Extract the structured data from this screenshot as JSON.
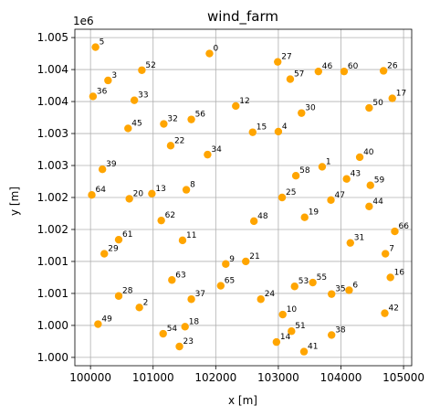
{
  "chart_data": {
    "type": "scatter",
    "title": "wind_farm",
    "xlabel": "x [m]",
    "ylabel": "y [m]",
    "y_offset_label": "1e6",
    "xlim": [
      99750,
      105130
    ],
    "ylim": [
      999870,
      1005130
    ],
    "x_ticks": [
      100000,
      101000,
      102000,
      103000,
      104000,
      105000
    ],
    "x_tick_labels": [
      "100000",
      "101000",
      "102000",
      "103000",
      "104000",
      "105000"
    ],
    "y_ticks": [
      1000000,
      1000500,
      1001000,
      1001500,
      1002000,
      1002500,
      1003000,
      1003500,
      1004000,
      1004500,
      1005000
    ],
    "y_tick_labels": [
      "1.000",
      "1.000",
      "1.001",
      "1.001",
      "1.002",
      "1.002",
      "1.003",
      "1.003",
      "1.004",
      "1.004",
      "1.005"
    ],
    "grid": true,
    "marker_color": "#FFA500",
    "points": [
      {
        "label": "0",
        "x": 101900,
        "y": 1004750
      },
      {
        "label": "1",
        "x": 103700,
        "y": 1002980
      },
      {
        "label": "2",
        "x": 100780,
        "y": 1000780
      },
      {
        "label": "3",
        "x": 100280,
        "y": 1004330
      },
      {
        "label": "4",
        "x": 103000,
        "y": 1003530
      },
      {
        "label": "5",
        "x": 100080,
        "y": 1004850
      },
      {
        "label": "6",
        "x": 104130,
        "y": 1001050
      },
      {
        "label": "7",
        "x": 104710,
        "y": 1001620
      },
      {
        "label": "8",
        "x": 101530,
        "y": 1002620
      },
      {
        "label": "9",
        "x": 102160,
        "y": 1001460
      },
      {
        "label": "10",
        "x": 103070,
        "y": 1000670
      },
      {
        "label": "11",
        "x": 101470,
        "y": 1001830
      },
      {
        "label": "12",
        "x": 102320,
        "y": 1003930
      },
      {
        "label": "13",
        "x": 100980,
        "y": 1002560
      },
      {
        "label": "14",
        "x": 102970,
        "y": 1000240
      },
      {
        "label": "15",
        "x": 102590,
        "y": 1003520
      },
      {
        "label": "16",
        "x": 104790,
        "y": 1001250
      },
      {
        "label": "17",
        "x": 104820,
        "y": 1004050
      },
      {
        "label": "18",
        "x": 101510,
        "y": 1000480
      },
      {
        "label": "19",
        "x": 103420,
        "y": 1002190
      },
      {
        "label": "20",
        "x": 100620,
        "y": 1002480
      },
      {
        "label": "21",
        "x": 102480,
        "y": 1001500
      },
      {
        "label": "22",
        "x": 101280,
        "y": 1003310
      },
      {
        "label": "23",
        "x": 101420,
        "y": 1000170
      },
      {
        "label": "24",
        "x": 102720,
        "y": 1000910
      },
      {
        "label": "25",
        "x": 103060,
        "y": 1002500
      },
      {
        "label": "26",
        "x": 104680,
        "y": 1004480
      },
      {
        "label": "27",
        "x": 102990,
        "y": 1004620
      },
      {
        "label": "28",
        "x": 100450,
        "y": 1000960
      },
      {
        "label": "29",
        "x": 100220,
        "y": 1001620
      },
      {
        "label": "30",
        "x": 103370,
        "y": 1003820
      },
      {
        "label": "31",
        "x": 104150,
        "y": 1001790
      },
      {
        "label": "32",
        "x": 101170,
        "y": 1003650
      },
      {
        "label": "33",
        "x": 100700,
        "y": 1004020
      },
      {
        "label": "34",
        "x": 101870,
        "y": 1003170
      },
      {
        "label": "35",
        "x": 103850,
        "y": 1000990
      },
      {
        "label": "36",
        "x": 100040,
        "y": 1004080
      },
      {
        "label": "37",
        "x": 101610,
        "y": 1000910
      },
      {
        "label": "38",
        "x": 103850,
        "y": 1000350
      },
      {
        "label": "39",
        "x": 100190,
        "y": 1002940
      },
      {
        "label": "40",
        "x": 104300,
        "y": 1003130
      },
      {
        "label": "41",
        "x": 103410,
        "y": 1000090
      },
      {
        "label": "42",
        "x": 104700,
        "y": 1000690
      },
      {
        "label": "43",
        "x": 104090,
        "y": 1002790
      },
      {
        "label": "44",
        "x": 104450,
        "y": 1002360
      },
      {
        "label": "45",
        "x": 100600,
        "y": 1003580
      },
      {
        "label": "46",
        "x": 103640,
        "y": 1004470
      },
      {
        "label": "47",
        "x": 103840,
        "y": 1002460
      },
      {
        "label": "48",
        "x": 102610,
        "y": 1002130
      },
      {
        "label": "49",
        "x": 100120,
        "y": 1000520
      },
      {
        "label": "50",
        "x": 104450,
        "y": 1003900
      },
      {
        "label": "51",
        "x": 103210,
        "y": 1000410
      },
      {
        "label": "52",
        "x": 100820,
        "y": 1004490
      },
      {
        "label": "53",
        "x": 103260,
        "y": 1001110
      },
      {
        "label": "54",
        "x": 101160,
        "y": 1000370
      },
      {
        "label": "55",
        "x": 103550,
        "y": 1001170
      },
      {
        "label": "56",
        "x": 101610,
        "y": 1003720
      },
      {
        "label": "57",
        "x": 103190,
        "y": 1004350
      },
      {
        "label": "58",
        "x": 103280,
        "y": 1002840
      },
      {
        "label": "59",
        "x": 104470,
        "y": 1002690
      },
      {
        "label": "60",
        "x": 104050,
        "y": 1004470
      },
      {
        "label": "61",
        "x": 100450,
        "y": 1001840
      },
      {
        "label": "62",
        "x": 101130,
        "y": 1002140
      },
      {
        "label": "63",
        "x": 101300,
        "y": 1001210
      },
      {
        "label": "64",
        "x": 100020,
        "y": 1002540
      },
      {
        "label": "65",
        "x": 102080,
        "y": 1001120
      },
      {
        "label": "66",
        "x": 104860,
        "y": 1001970
      }
    ]
  }
}
